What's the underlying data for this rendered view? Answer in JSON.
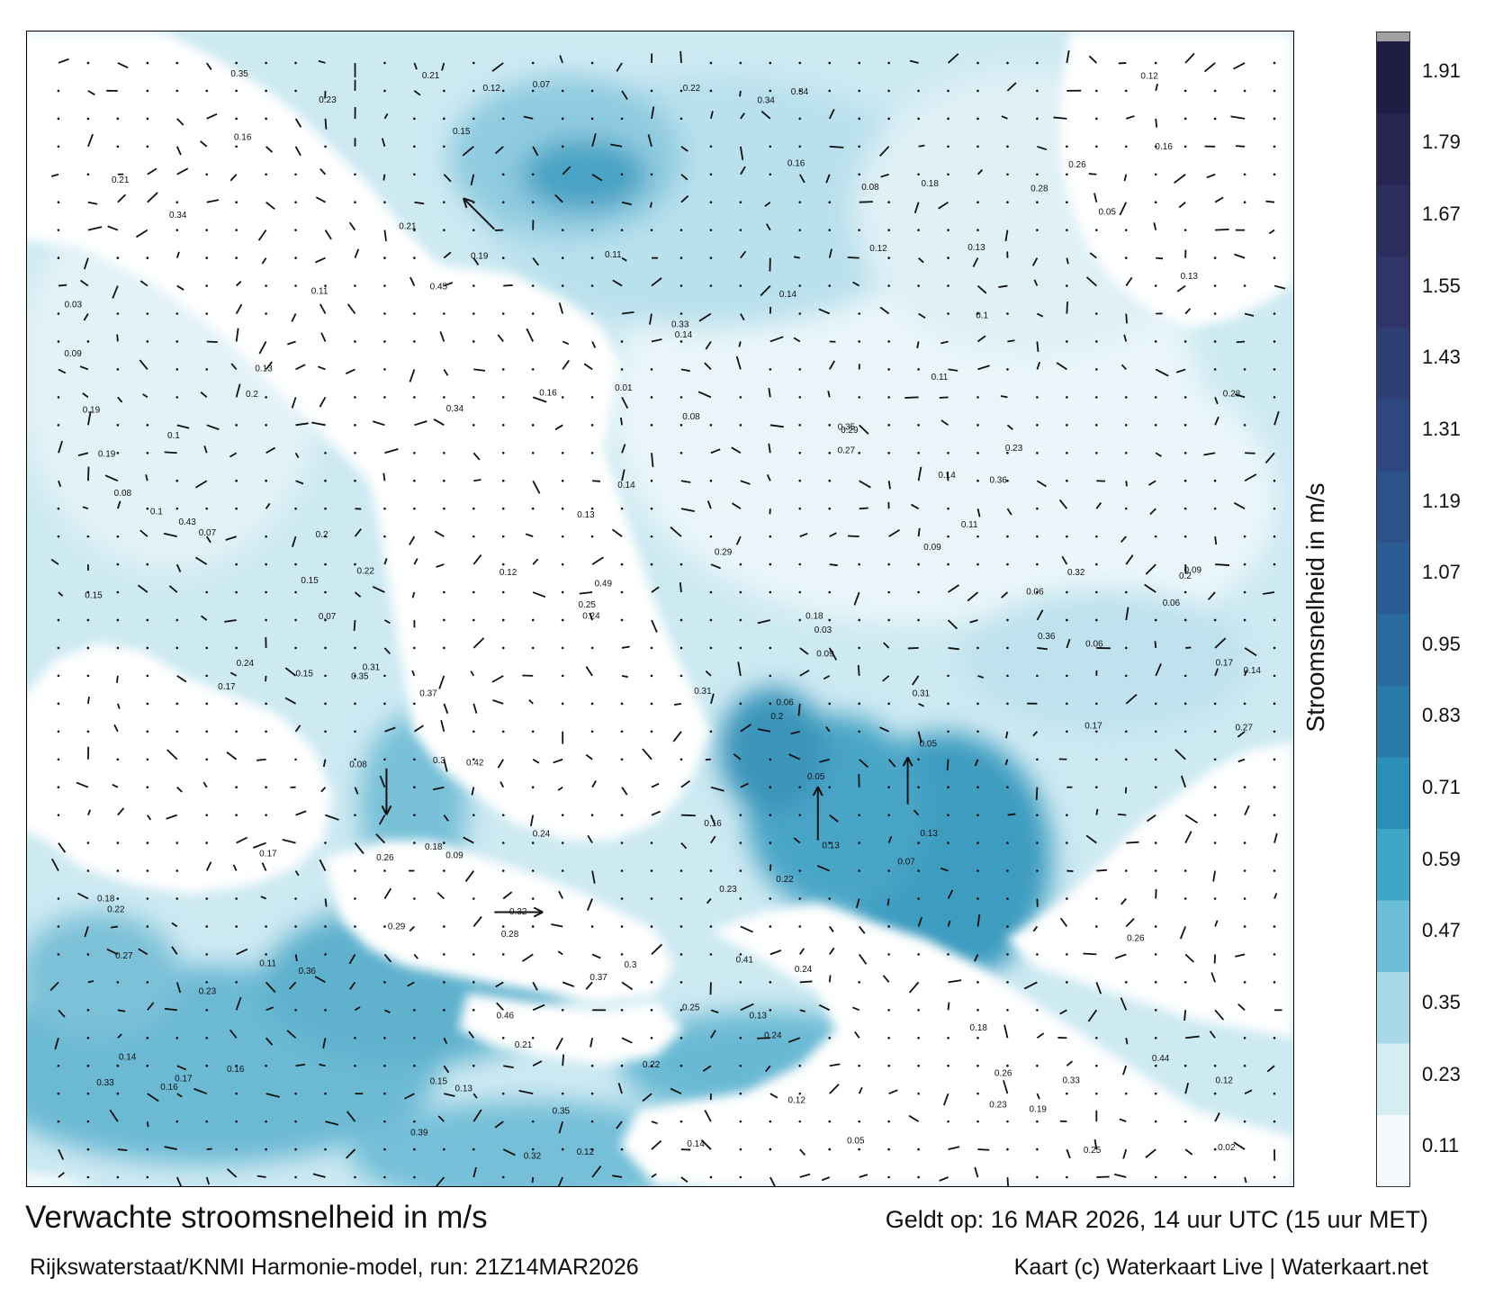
{
  "map": {
    "title": "Verwachte stroomsnelheid in m/s",
    "model": "Rijkswaterstaat/KNMI Harmonie-model, run: 21Z14MAR2026",
    "valid": "Geldt op: 16 MAR 2026, 14 uur UTC (15 uur MET)",
    "credit": "Kaart (c) Waterkaart Live | Waterkaart.net",
    "colorbar_label": "Stroomsnelheid in m/s",
    "unit": "m/s",
    "colorbar_ticks": [
      "1.91",
      "1.79",
      "1.67",
      "1.55",
      "1.43",
      "1.31",
      "1.19",
      "1.07",
      "0.95",
      "0.83",
      "0.71",
      "0.59",
      "0.47",
      "0.35",
      "0.23",
      "0.11"
    ],
    "colorbar_colors": [
      "#f4fafc",
      "#d6ecf3",
      "#a9d8e7",
      "#6cbdd6",
      "#3ea5c6",
      "#2b8fb6",
      "#2a7aa8",
      "#296b9d",
      "#2b5d94",
      "#2d5289",
      "#2e487f",
      "#2f3e74",
      "#2f3569",
      "#2c2c5d",
      "#262552",
      "#1e1e44"
    ],
    "colorbar_top_color": "#a0a0a0",
    "flow_vectors": [
      {
        "name": "strait-dover-flow",
        "speed": 0.35,
        "direction": "east"
      },
      {
        "name": "thames-estuary-flow",
        "speed": 0.31,
        "direction": "north"
      },
      {
        "name": "firth-flow",
        "speed": 0.49,
        "direction": "north"
      },
      {
        "name": "irish-sea-flow",
        "speed": 0.29,
        "direction": "south"
      },
      {
        "name": "northwest-flow",
        "speed": 0.23,
        "direction": "northwest"
      }
    ],
    "value_labels": [
      "0.11",
      "0.12",
      "0.14",
      "0.06",
      "0.09",
      "0.05",
      "0.13",
      "0.13",
      "0.18",
      "0.15",
      "0.16",
      "0.2",
      "0.07",
      "0.21",
      "0.07",
      "0.06",
      "0.05",
      "0.15",
      "0.16",
      "0.1",
      "0.08",
      "0.12",
      "0.18",
      "0.2",
      "0.27",
      "0.34",
      "0.32",
      "0.37",
      "0.35",
      "0.23",
      "0.24",
      "0.26",
      "0.17",
      "0.19",
      "0.09",
      "0.14",
      "0.11",
      "0.16",
      "0.13",
      "0.09",
      "0.11",
      "0.12",
      "0.15",
      "0.16",
      "0.15",
      "0.1",
      "0.13",
      "0.22",
      "0.19",
      "0.25",
      "0.22",
      "0.12",
      "0.14",
      "0.09",
      "0.08",
      "0.06",
      "0.03",
      "0.02",
      "0.01",
      "0.03",
      "0.05",
      "0.16",
      "0.17",
      "0.18",
      "0.14",
      "0.08",
      "0.13",
      "0.17",
      "0.2",
      "0.24",
      "0.23",
      "0.18",
      "0.14",
      "0.1",
      "0.07",
      "0.11",
      "0.14",
      "0.05",
      "0.07",
      "0.12",
      "0.13",
      "0.18",
      "0.08",
      "0.17",
      "0.15",
      "0.06",
      "0.22",
      "0.24",
      "0.31",
      "0.33",
      "0.19",
      "0.21",
      "0.29",
      "0.31",
      "0.28",
      "0.26",
      "0.45",
      "0.39",
      "0.37",
      "0.41",
      "0.42",
      "0.49",
      "0.46",
      "0.43",
      "0.44",
      "0.36",
      "0.34",
      "0.35",
      "0.32",
      "0.3",
      "0.28",
      "0.25",
      "0.33",
      "0.29",
      "0.27",
      "0.26",
      "0.24",
      "0.36",
      "0.32",
      "0.23",
      "0.16",
      "0.2",
      "0.34",
      "0.35",
      "0.3",
      "0.22",
      "0.28",
      "0.29",
      "0.23",
      "0.22",
      "0.16",
      "0.17",
      "0.12",
      "0.19",
      "0.13",
      "0.11",
      "0.09",
      "0.14",
      "0.24",
      "0.21",
      "0.26",
      "0.36",
      "0.35",
      "0.34",
      "0.31",
      "0.33",
      "0.27",
      "0.25",
      "0.23",
      "0.12",
      "0.13",
      "0.21"
    ]
  }
}
